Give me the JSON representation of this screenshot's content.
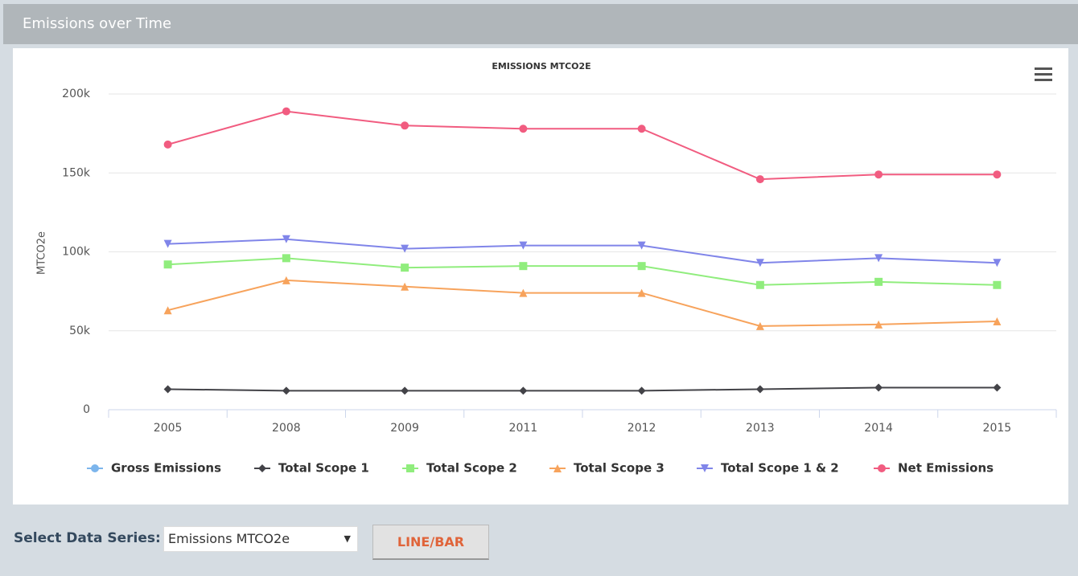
{
  "header": {
    "title": "Emissions over Time"
  },
  "chart_data": {
    "type": "line",
    "title": "EMISSIONS MTCO2E",
    "y_label": "MTCO2e",
    "categories": [
      "2005",
      "2008",
      "2009",
      "2011",
      "2012",
      "2013",
      "2014",
      "2015"
    ],
    "ylim": [
      0,
      200000
    ],
    "yticks": [
      0,
      {
        "value": 50000,
        "label": "50k"
      },
      {
        "value": 100000,
        "label": "100k"
      },
      {
        "value": 150000,
        "label": "150k"
      },
      {
        "value": 200000,
        "label": "200k"
      }
    ],
    "grid": true,
    "series": [
      {
        "name": "Gross Emissions",
        "color": "#7cb5ec",
        "marker": "circle",
        "values": [
          null,
          null,
          null,
          null,
          null,
          null,
          null,
          null
        ]
      },
      {
        "name": "Total Scope 1",
        "color": "#434348",
        "marker": "diamond",
        "values": [
          13000,
          12000,
          12000,
          12000,
          12000,
          13000,
          14000,
          14000
        ]
      },
      {
        "name": "Total Scope 2",
        "color": "#90ed7d",
        "marker": "square",
        "values": [
          92000,
          96000,
          90000,
          91000,
          91000,
          79000,
          81000,
          79000
        ]
      },
      {
        "name": "Total Scope 3",
        "color": "#f7a35c",
        "marker": "triangle",
        "values": [
          63000,
          82000,
          78000,
          74000,
          74000,
          53000,
          54000,
          56000
        ]
      },
      {
        "name": "Total Scope 1 & 2",
        "color": "#8085e9",
        "marker": "triangle-down",
        "values": [
          105000,
          108000,
          102000,
          104000,
          104000,
          93000,
          96000,
          93000
        ]
      },
      {
        "name": "Net Emissions",
        "color": "#f15c80",
        "marker": "circle",
        "values": [
          168000,
          189000,
          180000,
          178000,
          178000,
          146000,
          149000,
          149000
        ]
      }
    ]
  },
  "controls": {
    "label": "Select Data Series:",
    "select_value": "Emissions MTCO2e",
    "button": "LINE/BAR"
  }
}
